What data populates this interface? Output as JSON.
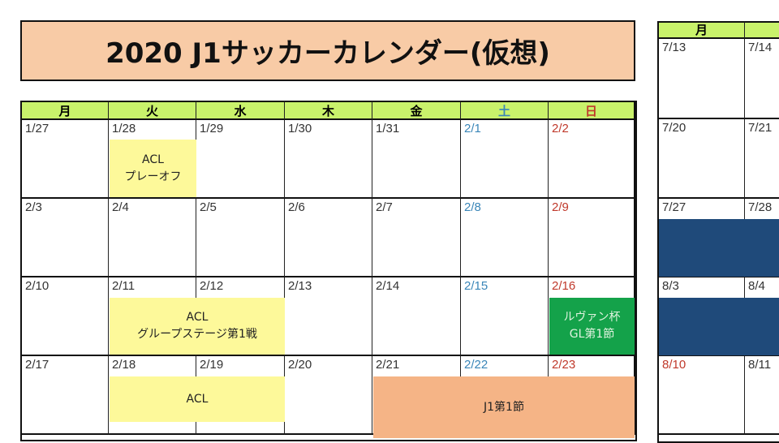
{
  "title": "2020 J1サッカーカレンダー(仮想)",
  "colors": {
    "header": "#c9f26b",
    "title_bg": "#f8cba6",
    "acl": "#fdf99a",
    "levain": "#14a24a",
    "j1": "#f5b486",
    "break": "#1f4a7a",
    "saturday": "#3a86b8",
    "sunday": "#c0392b"
  },
  "weekdays": [
    "月",
    "火",
    "水",
    "木",
    "金",
    "土",
    "日"
  ],
  "weeks": [
    [
      "1/27",
      "1/28",
      "1/29",
      "1/30",
      "1/31",
      "2/1",
      "2/2"
    ],
    [
      "2/3",
      "2/4",
      "2/5",
      "2/6",
      "2/7",
      "2/8",
      "2/9"
    ],
    [
      "2/10",
      "2/11",
      "2/12",
      "2/13",
      "2/14",
      "2/15",
      "2/16"
    ],
    [
      "2/17",
      "2/18",
      "2/19",
      "2/20",
      "2/21",
      "2/22",
      "2/23"
    ]
  ],
  "events": {
    "acl_playoff": "ACL\nプレーオフ",
    "acl_gs1": "ACL\nグループステージ第1戦",
    "levain_gl1": "ルヴァン杯\nGL第1節",
    "acl_gs2": "ACL",
    "j1_1": "J1第1節"
  },
  "right_calendar": {
    "weekdays": [
      "月",
      ""
    ],
    "weeks": [
      [
        "7/13",
        "7/14"
      ],
      [
        "7/20",
        "7/21"
      ],
      [
        "7/27",
        "7/28"
      ],
      [
        "8/3",
        "8/4"
      ],
      [
        "8/10",
        "8/11"
      ]
    ]
  }
}
